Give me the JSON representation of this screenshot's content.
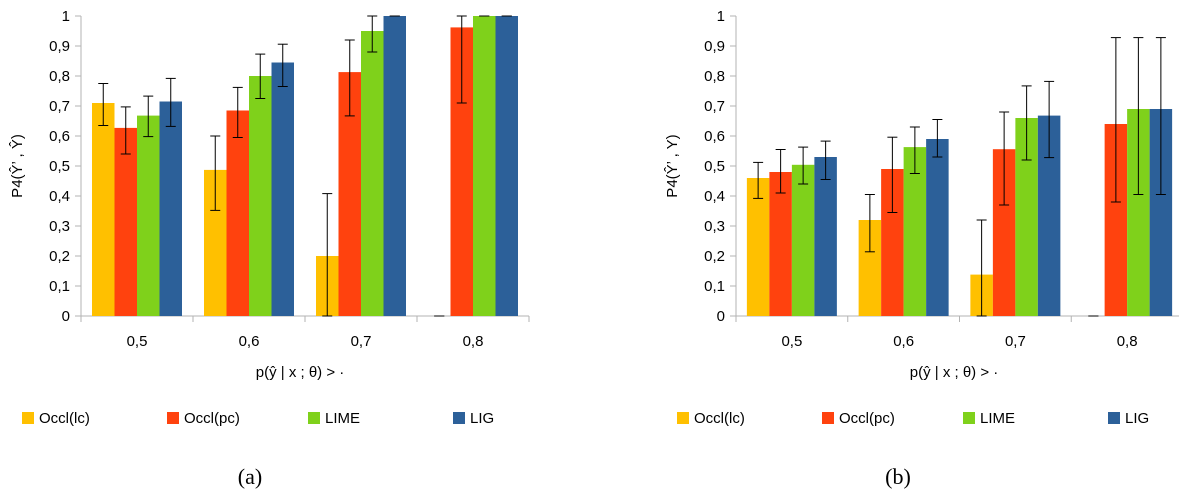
{
  "figure": {
    "panel_captions": [
      "(a)",
      "(b)"
    ]
  },
  "chart_data": [
    {
      "type": "bar",
      "caption": "(a)",
      "xlabel": "p(ŷ | x ; θ) > ·",
      "ylabel": "P4(Ŷ’ , Ŷ)",
      "categories": [
        "0,5",
        "0,6",
        "0,7",
        "0,8"
      ],
      "yticks": [
        "0",
        "0,1",
        "0,2",
        "0,3",
        "0,4",
        "0,5",
        "0,6",
        "0,7",
        "0,8",
        "0,9",
        "1"
      ],
      "ylim": [
        0,
        1
      ],
      "grid": false,
      "legend": "bottom",
      "series": [
        {
          "name": "Occl(lc)",
          "color": "#FFC000",
          "values": [
            0.71,
            0.487,
            0.2,
            0.0
          ],
          "err_low": [
            0.635,
            0.352,
            0.0,
            0.0
          ],
          "err_high": [
            0.775,
            0.6,
            0.408,
            0.0
          ]
        },
        {
          "name": "Occl(pc)",
          "color": "#FF420E",
          "values": [
            0.627,
            0.685,
            0.813,
            0.962
          ],
          "err_low": [
            0.54,
            0.595,
            0.667,
            0.71
          ],
          "err_high": [
            0.697,
            0.762,
            0.92,
            1.0
          ]
        },
        {
          "name": "LIME",
          "color": "#7FD11B",
          "values": [
            0.668,
            0.8,
            0.95,
            1.0
          ],
          "err_low": [
            0.598,
            0.725,
            0.88,
            1.0
          ],
          "err_high": [
            0.733,
            0.873,
            1.0,
            1.0
          ]
        },
        {
          "name": "LIG",
          "color": "#2C6099",
          "values": [
            0.715,
            0.845,
            1.0,
            1.0
          ],
          "err_low": [
            0.632,
            0.765,
            1.0,
            1.0
          ],
          "err_high": [
            0.792,
            0.906,
            1.0,
            1.0
          ]
        }
      ]
    },
    {
      "type": "bar",
      "caption": "(b)",
      "xlabel": "p(ŷ | x ; θ) > ·",
      "ylabel": "P4(Ŷ’ , Y)",
      "categories": [
        "0,5",
        "0,6",
        "0,7",
        "0,8"
      ],
      "yticks": [
        "0",
        "0,1",
        "0,2",
        "0,3",
        "0,4",
        "0,5",
        "0,6",
        "0,7",
        "0,8",
        "0,9",
        "1"
      ],
      "ylim": [
        0,
        1
      ],
      "grid": false,
      "legend": "bottom",
      "series": [
        {
          "name": "Occl(lc)",
          "color": "#FFC000",
          "values": [
            0.46,
            0.32,
            0.138,
            0.0
          ],
          "err_low": [
            0.392,
            0.214,
            0.0,
            0.0
          ],
          "err_high": [
            0.512,
            0.405,
            0.32,
            0.0
          ]
        },
        {
          "name": "Occl(pc)",
          "color": "#FF420E",
          "values": [
            0.48,
            0.49,
            0.556,
            0.64
          ],
          "err_low": [
            0.41,
            0.345,
            0.37,
            0.38
          ],
          "err_high": [
            0.555,
            0.596,
            0.68,
            0.928
          ]
        },
        {
          "name": "LIME",
          "color": "#7FD11B",
          "values": [
            0.504,
            0.563,
            0.66,
            0.69
          ],
          "err_low": [
            0.44,
            0.475,
            0.52,
            0.405
          ],
          "err_high": [
            0.563,
            0.63,
            0.767,
            0.928
          ]
        },
        {
          "name": "LIG",
          "color": "#2C6099",
          "values": [
            0.53,
            0.59,
            0.668,
            0.69
          ],
          "err_low": [
            0.455,
            0.53,
            0.528,
            0.405
          ],
          "err_high": [
            0.583,
            0.655,
            0.782,
            0.928
          ]
        }
      ]
    }
  ]
}
